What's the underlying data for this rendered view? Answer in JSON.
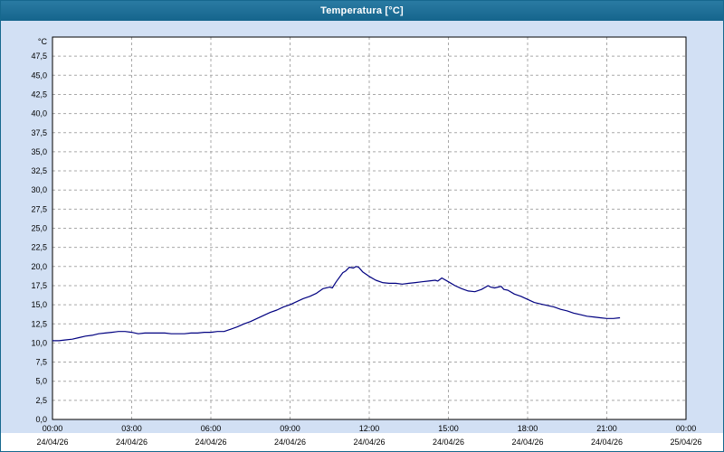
{
  "window": {
    "title": "Temperatura [°C]"
  },
  "colors": {
    "titlebar": "#15658c",
    "background": "#d2e0f4",
    "plot_background": "#ffffff",
    "grid": "#a8a8a8",
    "series_line": "#000080",
    "bottom_strip": "#ffffff"
  },
  "chart_data": {
    "type": "line",
    "title": "Temperatura [°C]",
    "y_unit_label": "°C",
    "ylim": [
      0,
      50
    ],
    "xlim_hours": [
      0,
      24
    ],
    "grid": "dashed",
    "legend": "none",
    "y_tick_labels": [
      "0,0",
      "2,5",
      "5,0",
      "7,5",
      "10,0",
      "12,5",
      "15,0",
      "17,5",
      "20,0",
      "22,5",
      "25,0",
      "27,5",
      "30,0",
      "32,5",
      "35,0",
      "37,5",
      "40,0",
      "42,5",
      "45,0",
      "47,5"
    ],
    "x_tick_step_hours": 3,
    "x_tick_times": [
      "00:00",
      "03:00",
      "06:00",
      "09:00",
      "12:00",
      "15:00",
      "18:00",
      "21:00",
      "00:00"
    ],
    "x_tick_dates": [
      "24/04/26",
      "24/04/26",
      "24/04/26",
      "24/04/26",
      "24/04/26",
      "24/04/26",
      "24/04/26",
      "24/04/26",
      "25/04/26"
    ],
    "series": [
      {
        "name": "Temperatura",
        "color": "#000080",
        "points": [
          [
            0.0,
            10.3
          ],
          [
            0.25,
            10.3
          ],
          [
            0.5,
            10.4
          ],
          [
            0.75,
            10.5
          ],
          [
            1.0,
            10.7
          ],
          [
            1.25,
            10.9
          ],
          [
            1.5,
            11.0
          ],
          [
            1.75,
            11.2
          ],
          [
            2.0,
            11.3
          ],
          [
            2.25,
            11.4
          ],
          [
            2.5,
            11.5
          ],
          [
            2.75,
            11.5
          ],
          [
            3.0,
            11.4
          ],
          [
            3.25,
            11.2
          ],
          [
            3.5,
            11.3
          ],
          [
            3.75,
            11.3
          ],
          [
            4.0,
            11.3
          ],
          [
            4.25,
            11.3
          ],
          [
            4.5,
            11.2
          ],
          [
            4.75,
            11.2
          ],
          [
            5.0,
            11.2
          ],
          [
            5.25,
            11.3
          ],
          [
            5.5,
            11.3
          ],
          [
            5.75,
            11.4
          ],
          [
            6.0,
            11.4
          ],
          [
            6.25,
            11.5
          ],
          [
            6.5,
            11.5
          ],
          [
            6.75,
            11.8
          ],
          [
            7.0,
            12.1
          ],
          [
            7.25,
            12.5
          ],
          [
            7.5,
            12.8
          ],
          [
            7.75,
            13.2
          ],
          [
            8.0,
            13.6
          ],
          [
            8.25,
            14.0
          ],
          [
            8.5,
            14.3
          ],
          [
            8.75,
            14.7
          ],
          [
            9.0,
            15.0
          ],
          [
            9.25,
            15.4
          ],
          [
            9.5,
            15.8
          ],
          [
            9.75,
            16.1
          ],
          [
            10.0,
            16.5
          ],
          [
            10.25,
            17.1
          ],
          [
            10.5,
            17.3
          ],
          [
            10.6,
            17.2
          ],
          [
            10.75,
            18.0
          ],
          [
            11.0,
            19.2
          ],
          [
            11.1,
            19.4
          ],
          [
            11.25,
            19.9
          ],
          [
            11.4,
            19.8
          ],
          [
            11.5,
            20.0
          ],
          [
            11.6,
            19.9
          ],
          [
            11.75,
            19.3
          ],
          [
            12.0,
            18.7
          ],
          [
            12.25,
            18.2
          ],
          [
            12.5,
            17.9
          ],
          [
            12.75,
            17.8
          ],
          [
            13.0,
            17.8
          ],
          [
            13.25,
            17.7
          ],
          [
            13.5,
            17.8
          ],
          [
            13.75,
            17.9
          ],
          [
            14.0,
            18.0
          ],
          [
            14.25,
            18.1
          ],
          [
            14.5,
            18.2
          ],
          [
            14.6,
            18.1
          ],
          [
            14.75,
            18.5
          ],
          [
            15.0,
            18.0
          ],
          [
            15.25,
            17.5
          ],
          [
            15.5,
            17.1
          ],
          [
            15.75,
            16.8
          ],
          [
            16.0,
            16.7
          ],
          [
            16.25,
            17.0
          ],
          [
            16.5,
            17.5
          ],
          [
            16.6,
            17.3
          ],
          [
            16.75,
            17.2
          ],
          [
            17.0,
            17.4
          ],
          [
            17.1,
            17.0
          ],
          [
            17.25,
            16.9
          ],
          [
            17.5,
            16.4
          ],
          [
            17.75,
            16.1
          ],
          [
            18.0,
            15.7
          ],
          [
            18.25,
            15.3
          ],
          [
            18.5,
            15.1
          ],
          [
            18.75,
            14.9
          ],
          [
            19.0,
            14.7
          ],
          [
            19.25,
            14.4
          ],
          [
            19.5,
            14.2
          ],
          [
            19.75,
            13.9
          ],
          [
            20.0,
            13.7
          ],
          [
            20.25,
            13.5
          ],
          [
            20.5,
            13.4
          ],
          [
            20.75,
            13.3
          ],
          [
            21.0,
            13.2
          ],
          [
            21.25,
            13.2
          ],
          [
            21.5,
            13.3
          ]
        ]
      }
    ]
  }
}
